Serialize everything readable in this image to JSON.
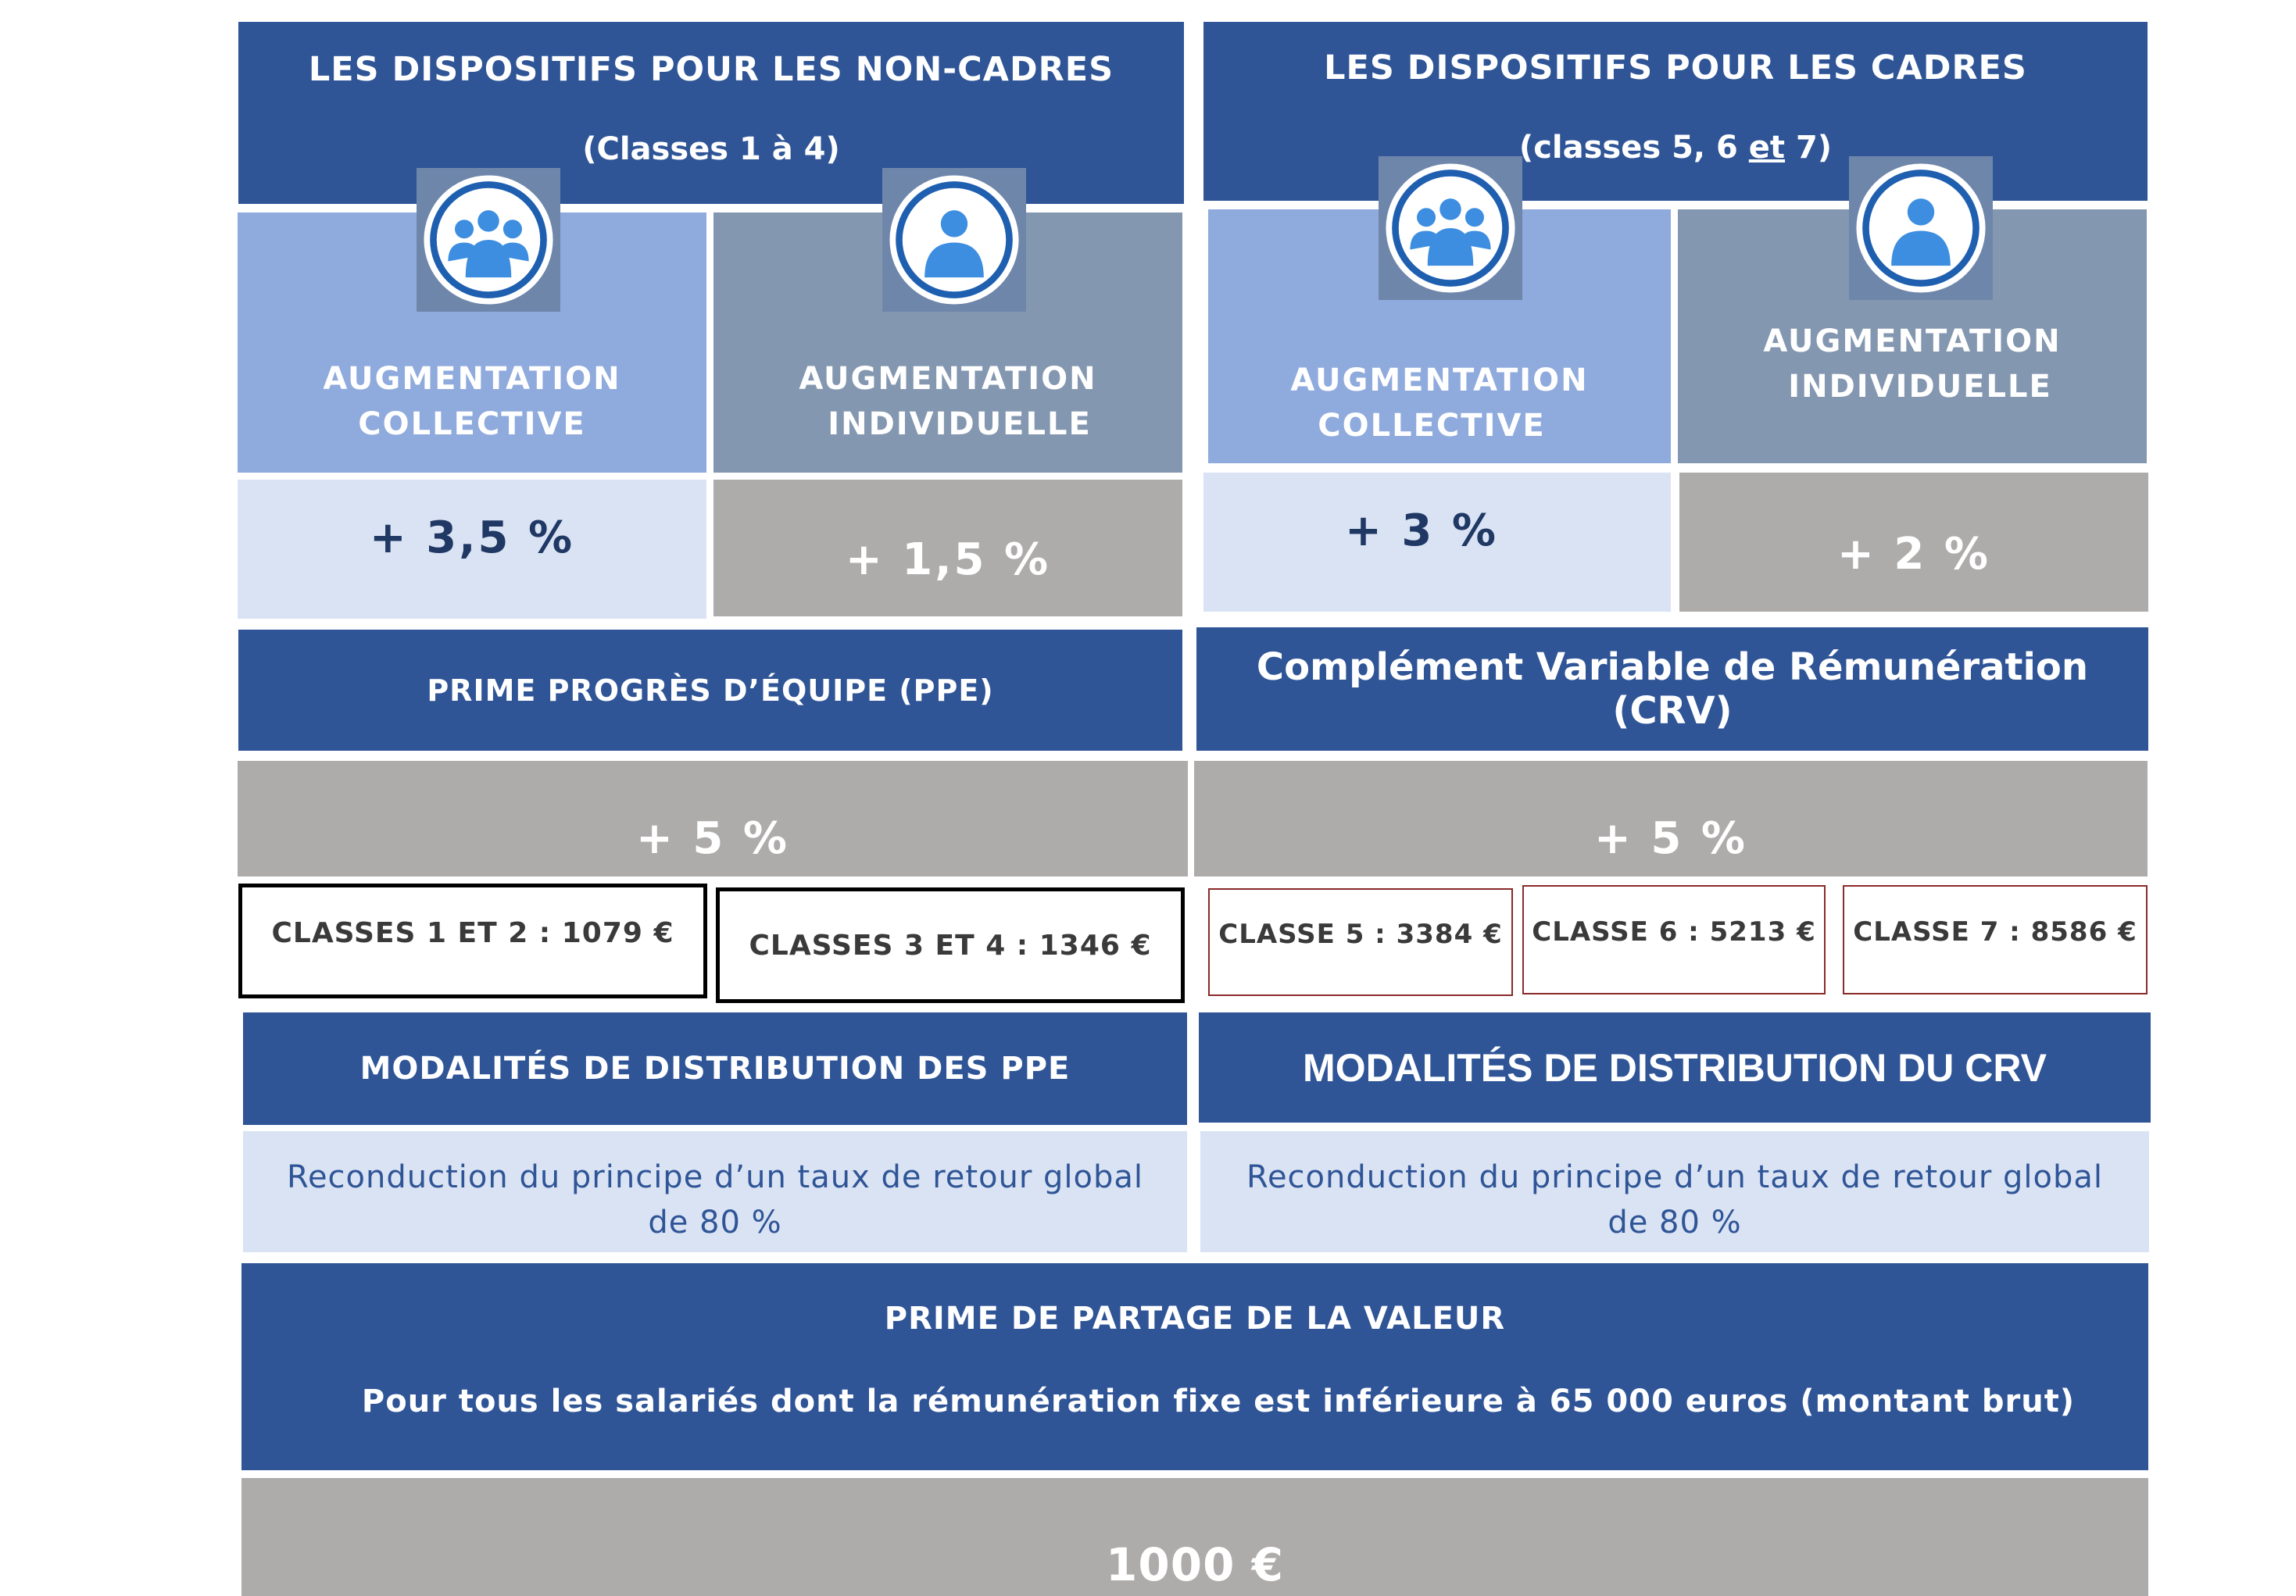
{
  "non_cadres": {
    "title": "LES DISPOSITIFS POUR LES NON-CADRES",
    "subtitle": "(Classes 1 à 4)",
    "collective": {
      "label_line1": "AUGMENTATION",
      "label_line2": "COLLECTIVE",
      "value": "+ 3,5 %",
      "icon": "group-icon"
    },
    "individual": {
      "label_line1": "AUGMENTATION",
      "label_line2": "INDIVIDUELLE",
      "value": "+ 1,5 %",
      "icon": "person-icon"
    },
    "bonus_title": "PRIME PROGRÈS D’ÉQUIPE (PPE)",
    "bonus_value": "+ 5 %",
    "amounts": [
      "CLASSES 1 ET 2 : 1079 €",
      "CLASSES 3 ET 4 : 1346 €"
    ],
    "distribution_title": "MODALITÉS DE DISTRIBUTION DES PPE",
    "distribution_line1": "Reconduction du principe d’un taux de retour global",
    "distribution_line2": "de 80 %"
  },
  "cadres": {
    "title": "LES DISPOSITIFS POUR LES CADRES",
    "subtitle_pre": "(classes 5, 6 ",
    "subtitle_et": "et",
    "subtitle_post": " 7)",
    "collective": {
      "label_line1": "AUGMENTATION",
      "label_line2": "COLLECTIVE",
      "value": "+ 3 %",
      "icon": "group-icon"
    },
    "individual": {
      "label_line1": "AUGMENTATION",
      "label_line2": "INDIVIDUELLE",
      "value": "+ 2 %",
      "icon": "person-icon"
    },
    "bonus_title": "Complément Variable de Rémunération (CRV)",
    "bonus_value": "+ 5 %",
    "amounts": [
      "CLASSE 5 : 3384 €",
      "CLASSE 6 : 5213 €",
      "CLASSE 7 : 8586 €"
    ],
    "distribution_title": "MODALITÉS DE DISTRIBUTION DU CRV",
    "distribution_line1": "Reconduction du principe d’un taux de retour global",
    "distribution_line2": "de 80 %"
  },
  "ppv": {
    "title": "PRIME DE PARTAGE DE LA VALEUR",
    "description": "Pour tous les salariés dont la rémunération fixe est inférieure à 65 000 euros (montant brut)",
    "value": "1000 €"
  },
  "colors": {
    "navy": "#2f5597",
    "light_blue": "#8faadc",
    "slate": "#8497b0",
    "pale_blue": "#dae3f3",
    "grey": "#aeabab",
    "icon_blue": "#3d8ee0"
  }
}
